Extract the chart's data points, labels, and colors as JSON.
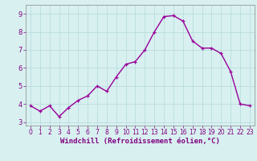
{
  "x": [
    0,
    1,
    2,
    3,
    4,
    5,
    6,
    7,
    8,
    9,
    10,
    11,
    12,
    13,
    14,
    15,
    16,
    17,
    18,
    19,
    20,
    21,
    22,
    23
  ],
  "y": [
    3.9,
    3.6,
    3.9,
    3.3,
    3.8,
    4.2,
    4.45,
    5.0,
    4.7,
    5.5,
    6.2,
    6.35,
    7.0,
    8.0,
    8.85,
    8.9,
    8.6,
    7.5,
    7.1,
    7.1,
    6.8,
    5.8,
    4.0,
    3.9
  ],
  "line_color": "#990099",
  "marker": "+",
  "markersize": 3,
  "linewidth": 1.0,
  "xlabel": "Windchill (Refroidissement éolien,°C)",
  "xlabel_fontsize": 6.5,
  "bg_color": "#d8f0f0",
  "grid_color": "#bbdddd",
  "tick_color": "#800080",
  "xlim": [
    -0.5,
    23.5
  ],
  "ylim": [
    2.8,
    9.5
  ],
  "yticks": [
    3,
    4,
    5,
    6,
    7,
    8,
    9
  ],
  "xticks": [
    0,
    1,
    2,
    3,
    4,
    5,
    6,
    7,
    8,
    9,
    10,
    11,
    12,
    13,
    14,
    15,
    16,
    17,
    18,
    19,
    20,
    21,
    22,
    23
  ],
  "tick_fontsize": 5.5,
  "fig_bg_color": "#d8f0f0",
  "spine_color": "#888888"
}
